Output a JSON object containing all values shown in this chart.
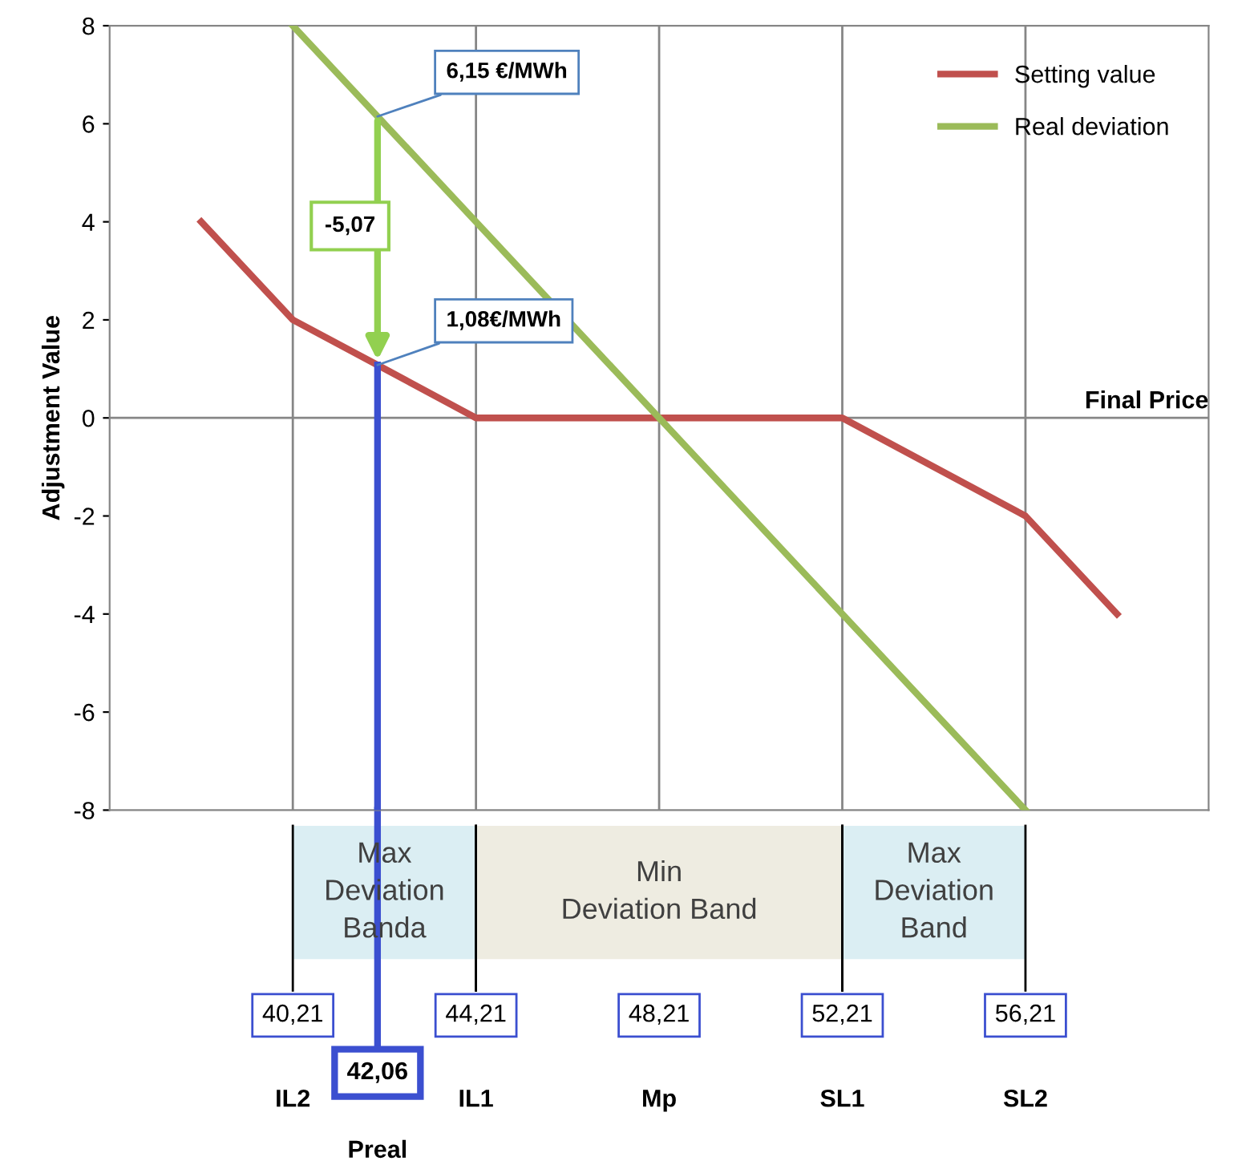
{
  "chart_data": {
    "type": "line",
    "xlabel": "Final Price",
    "ylabel": "Adjustment Value",
    "xlim": [
      36.21,
      60.21
    ],
    "ylim": [
      -8,
      8
    ],
    "xticks": [
      {
        "value": 40.21,
        "label": "40,21"
      },
      {
        "value": 44.21,
        "label": "44,21"
      },
      {
        "value": 48.21,
        "label": "48,21"
      },
      {
        "value": 52.21,
        "label": "52,21"
      },
      {
        "value": 56.21,
        "label": "56,21"
      }
    ],
    "yticks": [
      -8,
      -6,
      -4,
      -2,
      0,
      2,
      4,
      6,
      8
    ],
    "grid": "x",
    "legend": "top right",
    "ref_lines": [
      {
        "axis": "y",
        "value": 0,
        "color": "#868686"
      }
    ],
    "series": [
      {
        "name": "Setting value",
        "color": "#c0504d",
        "x": [
          38.21,
          40.21,
          42.06,
          44.21,
          52.21,
          56.21,
          58.21
        ],
        "values": [
          4,
          2,
          1.08,
          0,
          0,
          -2,
          -4
        ]
      },
      {
        "name": "Real deviation",
        "color": "#9bbb59",
        "x": [
          40.21,
          56.21
        ],
        "values": [
          8,
          -8
        ]
      },
      {
        "color": "#3b4fd0",
        "x": [
          42.06,
          42.06
        ],
        "values": [
          1.08,
          -8
        ]
      }
    ],
    "annotations": [
      {
        "text": "6,15 €/MWh",
        "x": 42.06,
        "y": 6.15
      },
      {
        "text": "1,08€/MWh",
        "x": 42.06,
        "y": 1.08
      },
      "-5,07",
      "Max\nDeviation\nBanda",
      "Min\nDeviation Band",
      "Max\nDeviation\nBand",
      "IL2",
      "IL1",
      "Mp",
      "SL1",
      "SL2",
      "42,06",
      "Preal"
    ]
  }
}
